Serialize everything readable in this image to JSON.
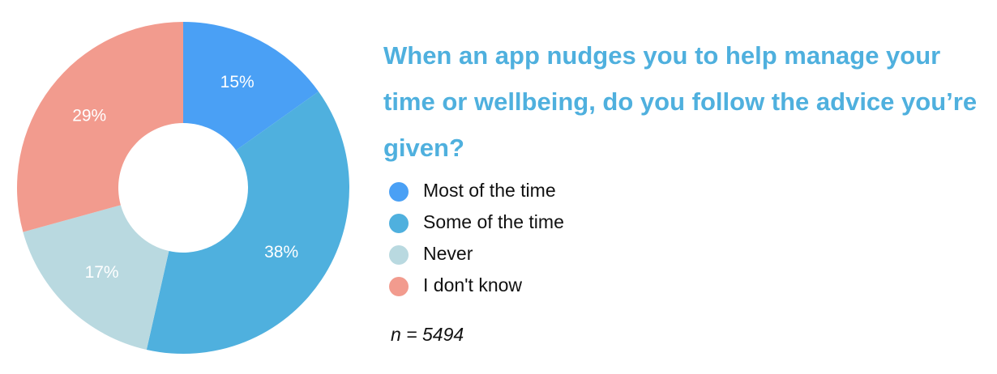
{
  "chart_data": {
    "type": "donut",
    "title": "When an app nudges you to help manage your time or wellbeing, do you follow the advice you’re given?",
    "categories": [
      "Most of the time",
      "Some of the time",
      "Never",
      "I don't know"
    ],
    "values": [
      15,
      38,
      17,
      29
    ],
    "value_labels": [
      "15%",
      "38%",
      "17%",
      "29%"
    ],
    "colors": [
      "#4aa0f5",
      "#4fb0de",
      "#b9d9e0",
      "#f29b8e"
    ],
    "annotation": "n = 5494"
  }
}
